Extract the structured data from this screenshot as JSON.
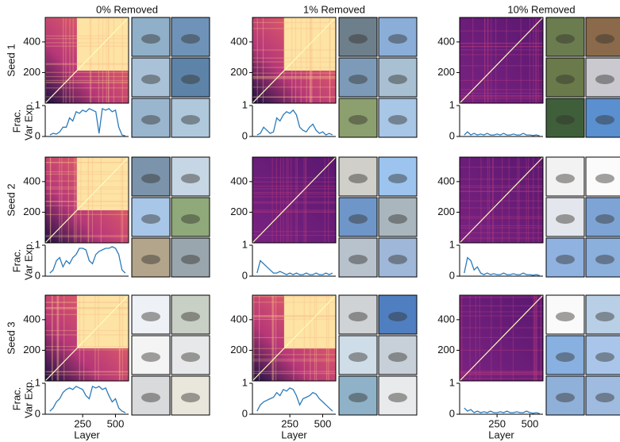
{
  "chart_data": [
    {
      "type": "line",
      "title": "0% Removed",
      "row_label": "Seed 1",
      "ylabel": [
        "Frac.",
        "Var Exp."
      ],
      "heatmap_ylim": [
        0,
        560
      ],
      "heatmap_yticks": [
        200,
        400
      ],
      "xlim": [
        -35,
        600
      ],
      "ylim": [
        0,
        1
      ],
      "yticks": [
        0,
        1
      ],
      "color": "#2b7bba",
      "x": [
        0,
        25,
        50,
        75,
        100,
        125,
        150,
        175,
        200,
        225,
        250,
        275,
        300,
        325,
        350,
        375,
        400,
        425,
        450,
        475,
        500,
        525,
        550,
        575
      ],
      "values": [
        0.05,
        0.1,
        0.08,
        0.15,
        0.3,
        0.3,
        0.6,
        0.5,
        0.8,
        0.75,
        0.85,
        0.8,
        0.9,
        0.85,
        0.8,
        0.1,
        0.9,
        0.85,
        0.9,
        0.8,
        0.85,
        0.3,
        0.05,
        0.02
      ]
    },
    {
      "type": "line",
      "title": "1% Removed",
      "heatmap_ylim": [
        0,
        560
      ],
      "heatmap_yticks": [
        200,
        400
      ],
      "xlim": [
        -35,
        600
      ],
      "ylim": [
        0,
        1
      ],
      "yticks": [
        0,
        1
      ],
      "color": "#2b7bba",
      "x": [
        0,
        25,
        50,
        75,
        100,
        125,
        150,
        175,
        200,
        225,
        250,
        275,
        300,
        325,
        350,
        375,
        400,
        425,
        450,
        475,
        500,
        525,
        550,
        575
      ],
      "values": [
        0.05,
        0.1,
        0.3,
        0.2,
        0.1,
        0.15,
        0.6,
        0.5,
        0.7,
        0.8,
        0.75,
        0.85,
        0.7,
        0.3,
        0.2,
        0.15,
        0.3,
        0.4,
        0.2,
        0.1,
        0.15,
        0.05,
        0.1,
        0.05
      ]
    },
    {
      "type": "line",
      "title": "10% Removed",
      "heatmap_ylim": [
        0,
        560
      ],
      "heatmap_yticks": [
        200,
        400
      ],
      "xlim": [
        -35,
        600
      ],
      "ylim": [
        0,
        1
      ],
      "yticks": [
        0,
        1
      ],
      "color": "#2b7bba",
      "x": [
        0,
        25,
        50,
        75,
        100,
        125,
        150,
        175,
        200,
        225,
        250,
        275,
        300,
        325,
        350,
        375,
        400,
        425,
        450,
        475,
        500,
        525,
        550,
        575
      ],
      "values": [
        0.05,
        0.15,
        0.05,
        0.1,
        0.05,
        0.08,
        0.05,
        0.1,
        0.05,
        0.05,
        0.08,
        0.05,
        0.1,
        0.05,
        0.05,
        0.08,
        0.05,
        0.05,
        0.1,
        0.05,
        0.05,
        0.03,
        0.05,
        0.02
      ]
    },
    {
      "type": "line",
      "row_label": "Seed 2",
      "ylabel": [
        "Frac.",
        "Var Exp."
      ],
      "heatmap_ylim": [
        0,
        560
      ],
      "heatmap_yticks": [
        200,
        400
      ],
      "xlim": [
        -35,
        600
      ],
      "ylim": [
        0,
        1
      ],
      "yticks": [
        0,
        1
      ],
      "color": "#2b7bba",
      "x": [
        0,
        25,
        50,
        75,
        100,
        125,
        150,
        175,
        200,
        225,
        250,
        275,
        300,
        325,
        350,
        375,
        400,
        425,
        450,
        475,
        500,
        525,
        550,
        575
      ],
      "values": [
        0.1,
        0.2,
        0.5,
        0.6,
        0.3,
        0.5,
        0.4,
        0.6,
        0.7,
        0.9,
        0.9,
        0.85,
        0.5,
        0.4,
        0.7,
        0.8,
        0.85,
        0.9,
        0.9,
        0.95,
        0.9,
        0.7,
        0.2,
        0.1
      ]
    },
    {
      "type": "line",
      "heatmap_ylim": [
        0,
        560
      ],
      "heatmap_yticks": [
        200,
        400
      ],
      "xlim": [
        -35,
        600
      ],
      "ylim": [
        0,
        1
      ],
      "yticks": [
        0,
        1
      ],
      "color": "#2b7bba",
      "x": [
        0,
        25,
        50,
        75,
        100,
        125,
        150,
        175,
        200,
        225,
        250,
        275,
        300,
        325,
        350,
        375,
        400,
        425,
        450,
        475,
        500,
        525,
        550,
        575
      ],
      "values": [
        0.1,
        0.5,
        0.4,
        0.3,
        0.2,
        0.1,
        0.1,
        0.15,
        0.1,
        0.05,
        0.1,
        0.05,
        0.1,
        0.05,
        0.05,
        0.1,
        0.05,
        0.05,
        0.1,
        0.05,
        0.05,
        0.1,
        0.05,
        0.1
      ]
    },
    {
      "type": "line",
      "heatmap_ylim": [
        0,
        560
      ],
      "heatmap_yticks": [
        200,
        400
      ],
      "xlim": [
        -35,
        600
      ],
      "ylim": [
        0,
        1
      ],
      "yticks": [
        0,
        1
      ],
      "color": "#2b7bba",
      "x": [
        0,
        25,
        50,
        75,
        100,
        125,
        150,
        175,
        200,
        225,
        250,
        275,
        300,
        325,
        350,
        375,
        400,
        425,
        450,
        475,
        500,
        525,
        550,
        575
      ],
      "values": [
        0.1,
        0.6,
        0.5,
        0.2,
        0.3,
        0.1,
        0.05,
        0.1,
        0.05,
        0.08,
        0.05,
        0.05,
        0.1,
        0.05,
        0.05,
        0.08,
        0.05,
        0.05,
        0.1,
        0.05,
        0.05,
        0.03,
        0.05,
        0.02
      ]
    },
    {
      "type": "line",
      "row_label": "Seed 3",
      "ylabel": [
        "Frac.",
        "Var Exp."
      ],
      "xlabel": "Layer",
      "heatmap_ylim": [
        0,
        560
      ],
      "heatmap_yticks": [
        200,
        400
      ],
      "xlim": [
        -35,
        600
      ],
      "xticks": [
        250,
        500
      ],
      "ylim": [
        0,
        1
      ],
      "yticks": [
        0,
        1
      ],
      "color": "#2b7bba",
      "x": [
        0,
        25,
        50,
        75,
        100,
        125,
        150,
        175,
        200,
        225,
        250,
        275,
        300,
        325,
        350,
        375,
        400,
        425,
        450,
        475,
        500,
        525,
        550,
        575
      ],
      "values": [
        0.1,
        0.2,
        0.4,
        0.5,
        0.7,
        0.8,
        0.85,
        0.8,
        0.9,
        0.85,
        0.8,
        0.6,
        0.5,
        0.9,
        0.85,
        0.9,
        0.8,
        0.85,
        0.6,
        0.4,
        0.5,
        0.2,
        0.1,
        0.05
      ]
    },
    {
      "type": "line",
      "xlabel": "Layer",
      "heatmap_ylim": [
        0,
        560
      ],
      "heatmap_yticks": [
        200,
        400
      ],
      "xlim": [
        -35,
        600
      ],
      "xticks": [
        250,
        500
      ],
      "ylim": [
        0,
        1
      ],
      "yticks": [
        0,
        1
      ],
      "color": "#2b7bba",
      "x": [
        0,
        25,
        50,
        75,
        100,
        125,
        150,
        175,
        200,
        225,
        250,
        275,
        300,
        325,
        350,
        375,
        400,
        425,
        450,
        475,
        500,
        525,
        550,
        575
      ],
      "values": [
        0.1,
        0.3,
        0.4,
        0.45,
        0.5,
        0.55,
        0.7,
        0.6,
        0.8,
        0.75,
        0.85,
        0.8,
        0.6,
        0.3,
        0.5,
        0.55,
        0.6,
        0.7,
        0.65,
        0.5,
        0.4,
        0.3,
        0.2,
        0.1
      ]
    },
    {
      "type": "line",
      "xlabel": "Layer",
      "heatmap_ylim": [
        0,
        560
      ],
      "heatmap_yticks": [
        200,
        400
      ],
      "xlim": [
        -35,
        600
      ],
      "xticks": [
        250,
        500
      ],
      "ylim": [
        0,
        1
      ],
      "yticks": [
        0,
        1
      ],
      "color": "#2b7bba",
      "x": [
        0,
        25,
        50,
        75,
        100,
        125,
        150,
        175,
        200,
        225,
        250,
        275,
        300,
        325,
        350,
        375,
        400,
        425,
        450,
        475,
        500,
        525,
        550,
        575
      ],
      "values": [
        0.2,
        0.1,
        0.15,
        0.05,
        0.1,
        0.05,
        0.08,
        0.05,
        0.1,
        0.05,
        0.05,
        0.08,
        0.05,
        0.1,
        0.05,
        0.05,
        0.08,
        0.05,
        0.05,
        0.1,
        0.05,
        0.03,
        0.05,
        0.02
      ]
    }
  ]
}
